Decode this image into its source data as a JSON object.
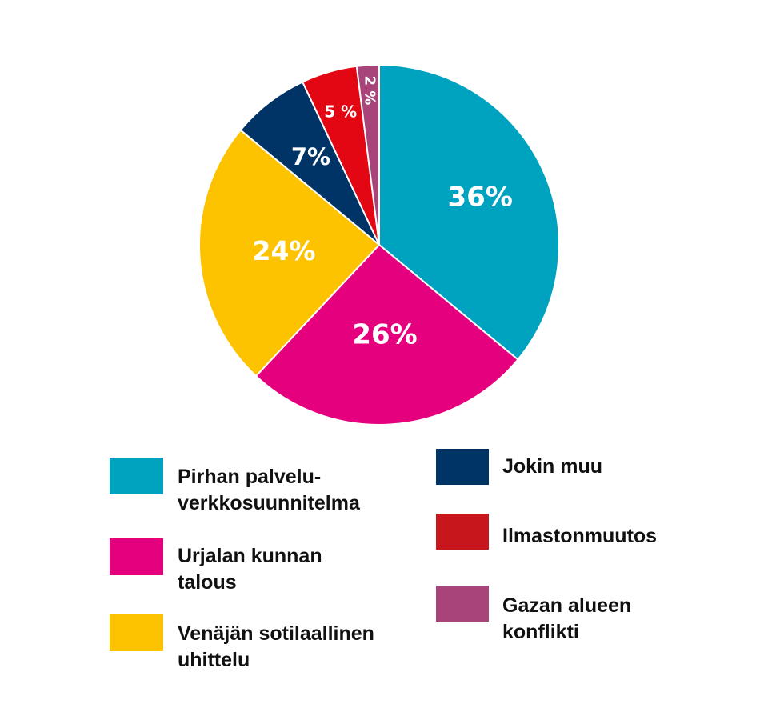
{
  "chart_data": {
    "type": "pie",
    "title": "",
    "slices": [
      {
        "name": "Pirhan palvelu-verkkosuunnitelma",
        "legend_lines": [
          "Pirhan palvelu-",
          "verkkosuunnitelma"
        ],
        "value": 36,
        "label": "36%",
        "color": "#00A3BF"
      },
      {
        "name": "Urjalan kunnan talous",
        "legend_lines": [
          "Urjalan kunnan",
          "talous"
        ],
        "value": 26,
        "label": "26%",
        "color": "#E5007D"
      },
      {
        "name": "Venäjän sotilaallinen uhittelu",
        "legend_lines": [
          "Venäjän sotilaallinen",
          "uhittelu"
        ],
        "value": 24,
        "label": "24%",
        "color": "#FDC300"
      },
      {
        "name": "Jokin muu",
        "legend_lines": [
          "Jokin muu"
        ],
        "value": 7,
        "label": "7%",
        "color": "#003366"
      },
      {
        "name": "Ilmastonmuutos",
        "legend_lines": [
          "Ilmastonmuutos"
        ],
        "value": 5,
        "label": "5 %",
        "color": "#E30613"
      },
      {
        "name": "Gazan alueen konflikti",
        "legend_lines": [
          "Gazan alueen",
          "konflikti"
        ],
        "value": 2,
        "label": "2 %",
        "color": "#A8447A"
      }
    ],
    "legend": {
      "placement": "bottom"
    }
  },
  "legend_colors": [
    "#00A3BF",
    "#E5007D",
    "#FDC300",
    "#003366",
    "#C8161D",
    "#A8447A"
  ]
}
